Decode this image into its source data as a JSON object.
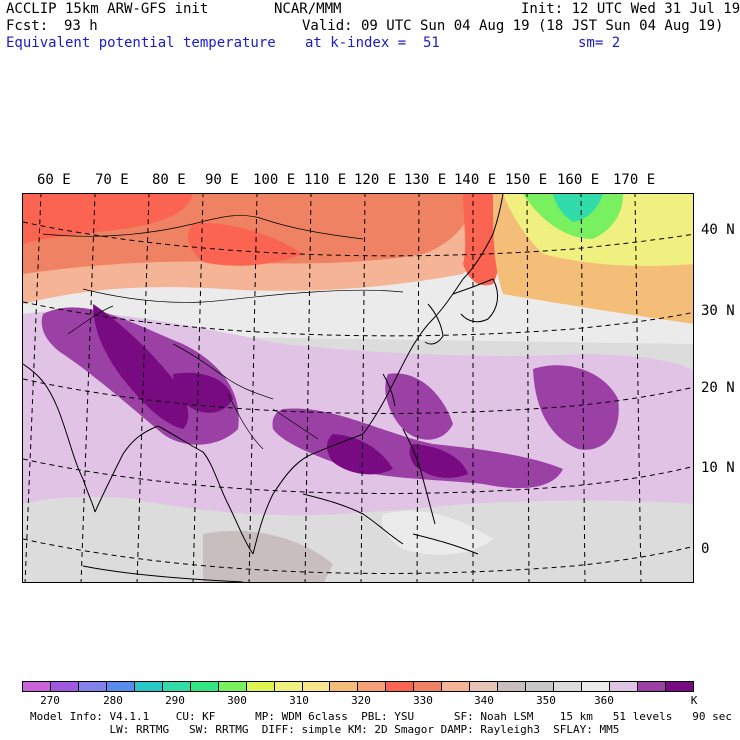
{
  "header": {
    "model": "ACCLIP 15km ARW-GFS init",
    "org": "NCAR/MMM",
    "init": "Init: 12 UTC Wed 31 Jul 19",
    "fcst_label": "Fcst:",
    "fcst_value": "93 h",
    "valid": "Valid: 09 UTC Sun 04 Aug 19 (18 JST Sun 04 Aug 19)",
    "field": "Equivalent potential temperature",
    "level": "at k-index =  51",
    "smoothing": "sm= 2"
  },
  "map": {
    "lon_labels": [
      "60 E",
      "70 E",
      "80 E",
      "90 E",
      "100 E",
      "110 E",
      "120 E",
      "130 E",
      "140 E",
      "150 E",
      "160 E",
      "170 E"
    ],
    "lat_labels": [
      "40 N",
      "30 N",
      "20 N",
      "10 N",
      "0"
    ]
  },
  "colorbar": {
    "unit": "K",
    "ticks": [
      "270",
      "280",
      "290",
      "300",
      "310",
      "320",
      "330",
      "340",
      "350",
      "360"
    ],
    "colors": [
      "#c864d8",
      "#a05ae0",
      "#8282e8",
      "#5a8cf0",
      "#28c8c8",
      "#32dcaa",
      "#32e682",
      "#78f060",
      "#dcf550",
      "#f0f080",
      "#fae68c",
      "#f5be78",
      "#f5a078",
      "#fa6450",
      "#f08264",
      "#f5b496",
      "#e6c3b4",
      "#c8bebe",
      "#c8c8c8",
      "#dcdcdc",
      "#ebebeb",
      "#e1c3e6",
      "#9b41a5",
      "#780a82"
    ]
  },
  "footer": {
    "line1": "Model Info: V4.1.1    CU: KF      MP: WDM 6class  PBL: YSU      SF: Noah LSM    15 km   51 levels   90 sec",
    "line2": "            LW: RRTMG   SW: RRTMG  DIFF: simple KM: 2D Smagor DAMP: Rayleigh3  SFLAY: MM5"
  }
}
